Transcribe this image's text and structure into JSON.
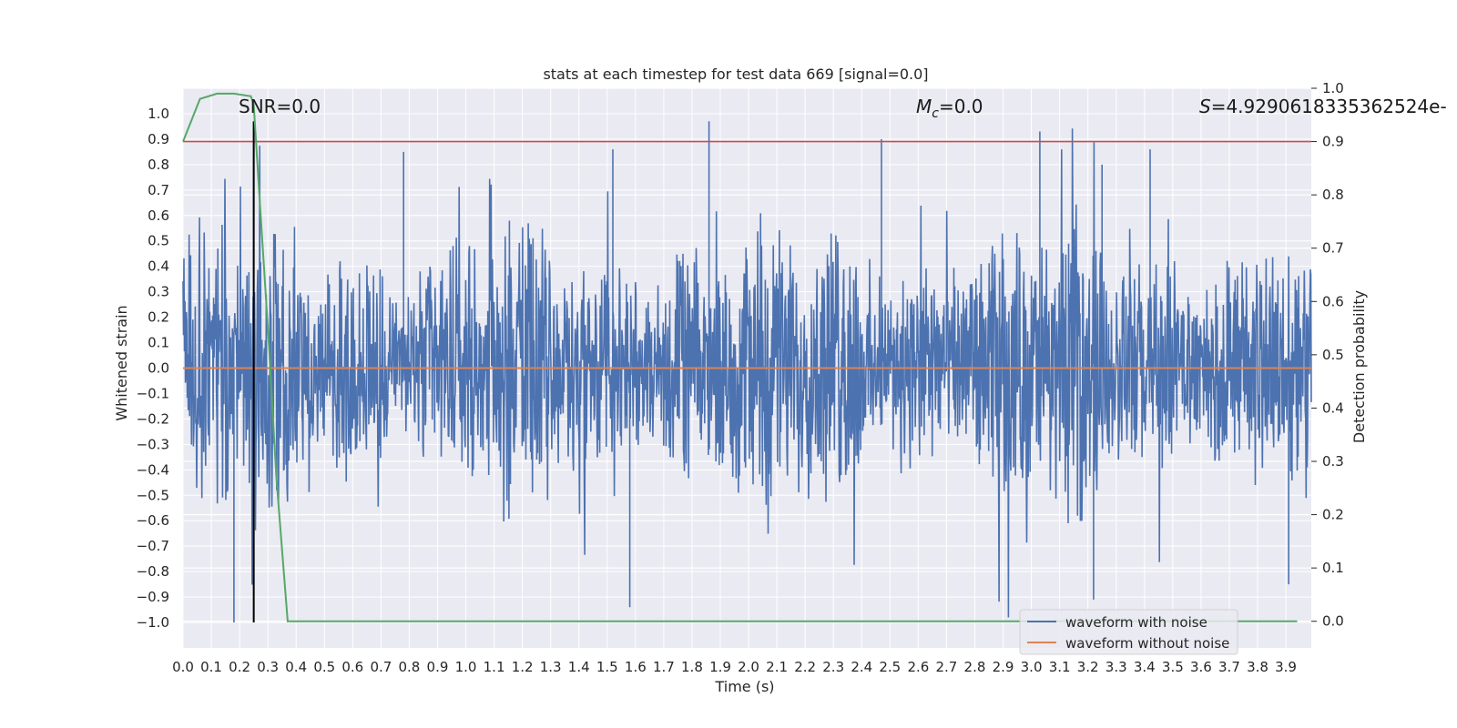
{
  "chart_data": {
    "type": "line",
    "title": "stats at each timestep for test data 669 [signal=0.0]",
    "xlabel": "Time (s)",
    "ylabel": "Whitened strain",
    "y2label": "Detection probability",
    "xlim": [
      0.0,
      3.99
    ],
    "ylim": [
      -1.1,
      1.1
    ],
    "y2lim": [
      -0.05,
      1.0
    ],
    "xticks": [
      "0.0",
      "0.1",
      "0.2",
      "0.3",
      "0.4",
      "0.5",
      "0.6",
      "0.7",
      "0.8",
      "0.9",
      "1.0",
      "1.1",
      "1.2",
      "1.3",
      "1.4",
      "1.5",
      "1.6",
      "1.7",
      "1.8",
      "1.9",
      "2.0",
      "2.1",
      "2.2",
      "2.3",
      "2.4",
      "2.5",
      "2.6",
      "2.7",
      "2.8",
      "2.9",
      "3.0",
      "3.1",
      "3.2",
      "3.3",
      "3.4",
      "3.5",
      "3.6",
      "3.7",
      "3.8",
      "3.9"
    ],
    "yticks": [
      "1.0",
      "0.9",
      "0.8",
      "0.7",
      "0.6",
      "0.5",
      "0.4",
      "0.3",
      "0.2",
      "0.1",
      "0.0",
      "−0.1",
      "−0.2",
      "−0.3",
      "−0.4",
      "−0.5",
      "−0.6",
      "−0.7",
      "−0.8",
      "−0.9",
      "−1.0"
    ],
    "y2ticks": [
      "1.0",
      "0.9",
      "0.8",
      "0.7",
      "0.6",
      "0.5",
      "0.4",
      "0.3",
      "0.2",
      "0.1",
      "0.0"
    ],
    "annotations": {
      "snr": "SNR=0.0",
      "mc_symbol": "M",
      "mc_sub": "c",
      "mc_value": "=0.0",
      "s_symbol": "S",
      "s_value": "=4.929061833536​2524e-"
    },
    "series": [
      {
        "name": "waveform with noise",
        "axis": "left",
        "color": "#4c72b0",
        "description": "noisy whitened strain, approx amplitude ±0.6 with peaks to ±1.0",
        "x_range": [
          0.0,
          3.99
        ],
        "peaks": [
          [
            0.18,
            -1.0
          ],
          [
            0.25,
            0.97
          ],
          [
            0.78,
            0.85
          ],
          [
            1.52,
            0.86
          ],
          [
            1.58,
            -0.94
          ],
          [
            1.86,
            0.97
          ],
          [
            2.47,
            0.9
          ],
          [
            3.03,
            0.93
          ],
          [
            3.22,
            -0.91
          ],
          [
            3.25,
            0.8
          ],
          [
            3.42,
            0.86
          ],
          [
            3.91,
            -0.85
          ]
        ]
      },
      {
        "name": "waveform without noise",
        "axis": "left",
        "color": "#dd8452",
        "x": [
          0.0,
          3.99
        ],
        "y": [
          0.0,
          0.0
        ]
      },
      {
        "name": "detection probability",
        "axis": "right",
        "color": "#55a868",
        "x": [
          0.0,
          0.06,
          0.12,
          0.18,
          0.24,
          0.25,
          0.27,
          0.3,
          0.33,
          0.37,
          0.4,
          1.0,
          2.0,
          3.0,
          3.94
        ],
        "y": [
          0.9,
          0.98,
          0.99,
          0.99,
          0.985,
          0.97,
          0.8,
          0.55,
          0.27,
          0.0,
          0.0,
          0.0,
          0.0,
          0.0,
          0.0
        ]
      },
      {
        "name": "threshold",
        "axis": "right",
        "color": "#c44e52",
        "y": 0.9
      },
      {
        "name": "marker",
        "color": "#000000",
        "x": 0.25,
        "y_from": -1.0,
        "y_to": 0.97
      }
    ],
    "legend": {
      "position": "bottom-right",
      "entries": [
        {
          "label": "waveform with noise",
          "color": "#4c72b0"
        },
        {
          "label": "waveform without noise",
          "color": "#dd8452"
        }
      ]
    },
    "style": {
      "plot_bg": "#eaeaf2",
      "grid_color": "#ffffff"
    }
  }
}
